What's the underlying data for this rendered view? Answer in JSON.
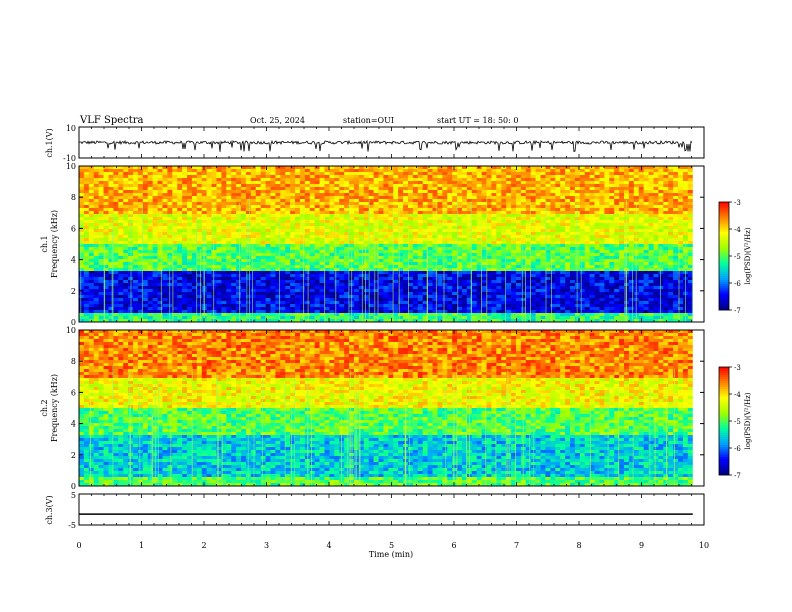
{
  "header": {
    "title": "VLF Spectra",
    "date": "Oct. 25, 2024",
    "station": "station=OUI",
    "start": "start  UT =  18: 50: 0"
  },
  "chart_data": [
    {
      "type": "line",
      "panel": "ch1-waveform",
      "ylabel": "ch.1(V)",
      "ylim": [
        -10,
        10
      ],
      "yticks": [
        "10",
        "-10"
      ],
      "x": [
        0,
        10
      ],
      "note_values": {
        "baseline_V": 0,
        "typical_spike_min_V": -6
      }
    },
    {
      "type": "heatmap",
      "panel": "ch1-spectrogram",
      "ylabel": "ch.1\nFrequency (kHz)",
      "ylim": [
        0,
        10
      ],
      "yticks": [
        "0",
        "2",
        "4",
        "6",
        "8",
        "10"
      ],
      "xlim": [
        0,
        10
      ],
      "colorbar": {
        "label": "log(PSD)(V²/Hz)",
        "range": [
          -7,
          -3
        ],
        "ticks": [
          "-3",
          "-4",
          "-5",
          "-6",
          "-7"
        ]
      },
      "bands": [
        {
          "freq_kHz": [
            0,
            0.6
          ],
          "log_psd": -5.2
        },
        {
          "freq_kHz": [
            0.6,
            3.3
          ],
          "log_psd": -6.5
        },
        {
          "freq_kHz": [
            3.3,
            5.0
          ],
          "log_psd": -5.0
        },
        {
          "freq_kHz": [
            5.0,
            7.0
          ],
          "log_psd": -4.3
        },
        {
          "freq_kHz": [
            7.0,
            10
          ],
          "log_psd": -3.8
        }
      ]
    },
    {
      "type": "heatmap",
      "panel": "ch2-spectrogram",
      "ylabel": "ch.2\nFrequency (kHz)",
      "ylim": [
        0,
        10
      ],
      "yticks": [
        "0",
        "2",
        "4",
        "6",
        "8",
        "10"
      ],
      "xlim": [
        0,
        10
      ],
      "colorbar": {
        "label": "log(PSD)(V²/Hz)",
        "range": [
          -7,
          -3
        ],
        "ticks": [
          "-3",
          "-4",
          "-5",
          "-6",
          "-7"
        ]
      },
      "bands": [
        {
          "freq_kHz": [
            0,
            0.6
          ],
          "log_psd": -5.0
        },
        {
          "freq_kHz": [
            0.6,
            3.2
          ],
          "log_psd": -5.6
        },
        {
          "freq_kHz": [
            3.2,
            5.0
          ],
          "log_psd": -5.0
        },
        {
          "freq_kHz": [
            5.0,
            7.0
          ],
          "log_psd": -4.2
        },
        {
          "freq_kHz": [
            7.0,
            10
          ],
          "log_psd": -3.6
        }
      ]
    },
    {
      "type": "line",
      "panel": "ch3-waveform",
      "ylabel": "ch.3(V)",
      "ylim": [
        -5,
        5
      ],
      "yticks": [
        "5",
        "-5"
      ],
      "x": [
        0,
        9.82
      ],
      "y": [
        -1.5,
        -1.5
      ]
    }
  ],
  "xaxis": {
    "label": "Time (min)",
    "ticks": [
      "0",
      "1",
      "2",
      "3",
      "4",
      "5",
      "6",
      "7",
      "8",
      "9",
      "10"
    ]
  },
  "colors": {
    "cmap": [
      "#000080",
      "#0000ff",
      "#00a0ff",
      "#00ffa0",
      "#a0ff00",
      "#ffff00",
      "#ff8000",
      "#ff0000"
    ]
  }
}
